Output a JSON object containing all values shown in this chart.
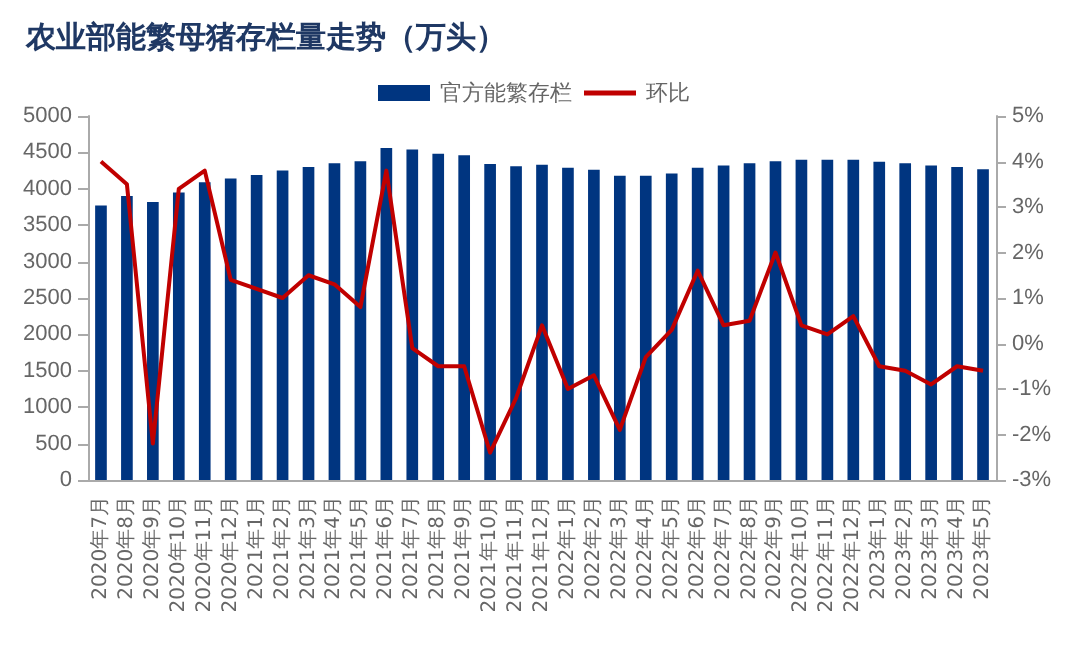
{
  "chart_data": {
    "type": "bar",
    "title": "农业部能繁母猪存栏量走势（万头）",
    "categories": [
      "2020年7月",
      "2020年8月",
      "2020年9月",
      "2020年10月",
      "2020年11月",
      "2020年12月",
      "2021年1月",
      "2021年2月",
      "2021年3月",
      "2021年4月",
      "2021年5月",
      "2021年6月",
      "2021年7月",
      "2021年8月",
      "2021年9月",
      "2021年10月",
      "2021年11月",
      "2021年12月",
      "2022年1月",
      "2022年2月",
      "2022年3月",
      "2022年4月",
      "2022年5月",
      "2022年6月",
      "2022年7月",
      "2022年8月",
      "2022年9月",
      "2022年10月",
      "2022年11月",
      "2022年12月",
      "2023年1月",
      "2023年2月",
      "2023年3月",
      "2023年4月",
      "2023年5月"
    ],
    "series": [
      {
        "name": "官方能繁存栏",
        "color": "#003580",
        "values": [
          3770,
          3900,
          3820,
          3950,
          4090,
          4140,
          4190,
          4250,
          4300,
          4350,
          4380,
          4560,
          4540,
          4480,
          4460,
          4340,
          4310,
          4330,
          4290,
          4260,
          4180,
          4180,
          4210,
          4290,
          4320,
          4350,
          4380,
          4400,
          4400,
          4400,
          4370,
          4350,
          4320,
          4300,
          4270
        ]
      },
      {
        "name": "环比",
        "type": "line",
        "axis": "y2",
        "color": "#c00000",
        "values": [
          4.0,
          3.5,
          -2.2,
          3.4,
          3.8,
          1.4,
          1.2,
          1.0,
          1.5,
          1.3,
          0.8,
          3.8,
          -0.1,
          -0.5,
          -0.5,
          -2.4,
          -1.2,
          0.4,
          -1.0,
          -0.7,
          -1.9,
          -0.3,
          0.3,
          1.6,
          0.4,
          0.5,
          2.0,
          0.4,
          0.2,
          0.6,
          -0.5,
          -0.6,
          -0.9,
          -0.5,
          -0.6
        ]
      }
    ],
    "ylim": [
      0,
      5000
    ],
    "yticks": [
      0,
      500,
      1000,
      1500,
      2000,
      2500,
      3000,
      3500,
      4000,
      4500,
      5000
    ],
    "y2lim": [
      -3,
      5
    ],
    "y2ticks": [
      {
        "value": -3,
        "label": "-3%"
      },
      {
        "value": -2,
        "label": "-2%"
      },
      {
        "value": -1,
        "label": "-1%"
      },
      {
        "value": 0,
        "label": "0%"
      },
      {
        "value": 1,
        "label": "1%"
      },
      {
        "value": 2,
        "label": "2%"
      },
      {
        "value": 3,
        "label": "3%"
      },
      {
        "value": 4,
        "label": "4%"
      },
      {
        "value": 5,
        "label": "5%"
      }
    ],
    "legend": "top",
    "grid": false,
    "marker": "none",
    "line_style": "solid"
  }
}
